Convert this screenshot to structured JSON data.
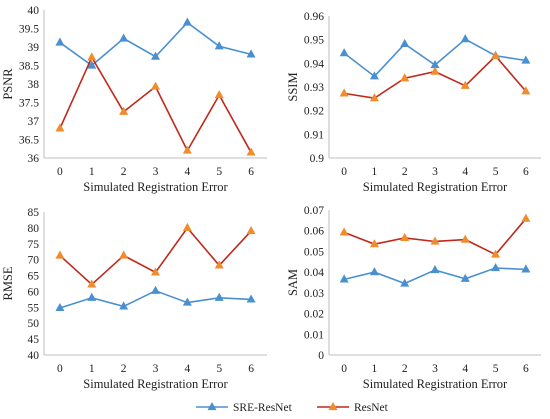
{
  "chart_data": [
    {
      "type": "line",
      "x": [
        0,
        1,
        2,
        3,
        4,
        5,
        6
      ],
      "xlabel": "Simulated Registration Error",
      "ylabel": "PSNR",
      "ylim": [
        36,
        40
      ],
      "yticks": [
        "36",
        "36.5",
        "37",
        "37.5",
        "38",
        "38.5",
        "39",
        "39.5",
        "40"
      ],
      "grid": false,
      "series": [
        {
          "name": "SRE-ResNet",
          "values": [
            39.12,
            38.5,
            39.23,
            38.74,
            39.66,
            39.02,
            38.8
          ]
        },
        {
          "name": "ResNet",
          "values": [
            36.8,
            38.72,
            37.25,
            37.93,
            36.2,
            37.7,
            36.15
          ]
        }
      ]
    },
    {
      "type": "line",
      "x": [
        0,
        1,
        2,
        3,
        4,
        5,
        6
      ],
      "xlabel": "Simulated Registration Error",
      "ylabel": "SSIM",
      "ylim": [
        0.9,
        0.96
      ],
      "yticks": [
        "0.9",
        "0.91",
        "0.92",
        "0.93",
        "0.94",
        "0.95",
        "0.96"
      ],
      "grid": false,
      "series": [
        {
          "name": "SRE-ResNet",
          "values": [
            0.9443,
            0.9345,
            0.9482,
            0.9393,
            0.9502,
            0.9432,
            0.9412
          ]
        },
        {
          "name": "ResNet",
          "values": [
            0.9273,
            0.9253,
            0.9337,
            0.9365,
            0.9305,
            0.9431,
            0.9282
          ]
        }
      ]
    },
    {
      "type": "line",
      "x": [
        0,
        1,
        2,
        3,
        4,
        5,
        6
      ],
      "xlabel": "Simulated Registration Error",
      "ylabel": "RMSE",
      "ylim": [
        40,
        85
      ],
      "yticks": [
        "40",
        "45",
        "50",
        "55",
        "60",
        "65",
        "70",
        "75",
        "80",
        "85"
      ],
      "grid": false,
      "series": [
        {
          "name": "SRE-ResNet",
          "values": [
            54.8,
            58.0,
            55.3,
            60.2,
            56.5,
            58.0,
            57.5
          ]
        },
        {
          "name": "ResNet",
          "values": [
            71.3,
            62.2,
            71.3,
            66.0,
            80.0,
            68.2,
            79.0
          ]
        }
      ]
    },
    {
      "type": "line",
      "x": [
        0,
        1,
        2,
        3,
        4,
        5,
        6
      ],
      "xlabel": "Simulated Registration Error",
      "ylabel": "SAM",
      "ylim": [
        0,
        0.07
      ],
      "yticks": [
        "0",
        "0.01",
        "0.02",
        "0.03",
        "0.04",
        "0.05",
        "0.06",
        "0.07"
      ],
      "grid": false,
      "series": [
        {
          "name": "SRE-ResNet",
          "values": [
            0.0365,
            0.04,
            0.0345,
            0.041,
            0.0368,
            0.042,
            0.0413
          ]
        },
        {
          "name": "ResNet",
          "values": [
            0.0592,
            0.0535,
            0.0565,
            0.0548,
            0.0557,
            0.0485,
            0.0658
          ]
        }
      ]
    }
  ],
  "legend": {
    "placement": "bottom-center",
    "items": [
      {
        "label": "SRE-ResNet",
        "color": "#4a90d0",
        "marker": "triangle"
      },
      {
        "label": "ResNet",
        "color": "#c0281c",
        "marker": "triangle",
        "marker_color": "#f08c2c"
      }
    ]
  },
  "colors": {
    "sre_line": "#4a90d0",
    "sre_marker": "#4a90d0",
    "resnet_line": "#c0281c",
    "resnet_marker": "#f08c2c",
    "axis": "#bfbfbf"
  }
}
